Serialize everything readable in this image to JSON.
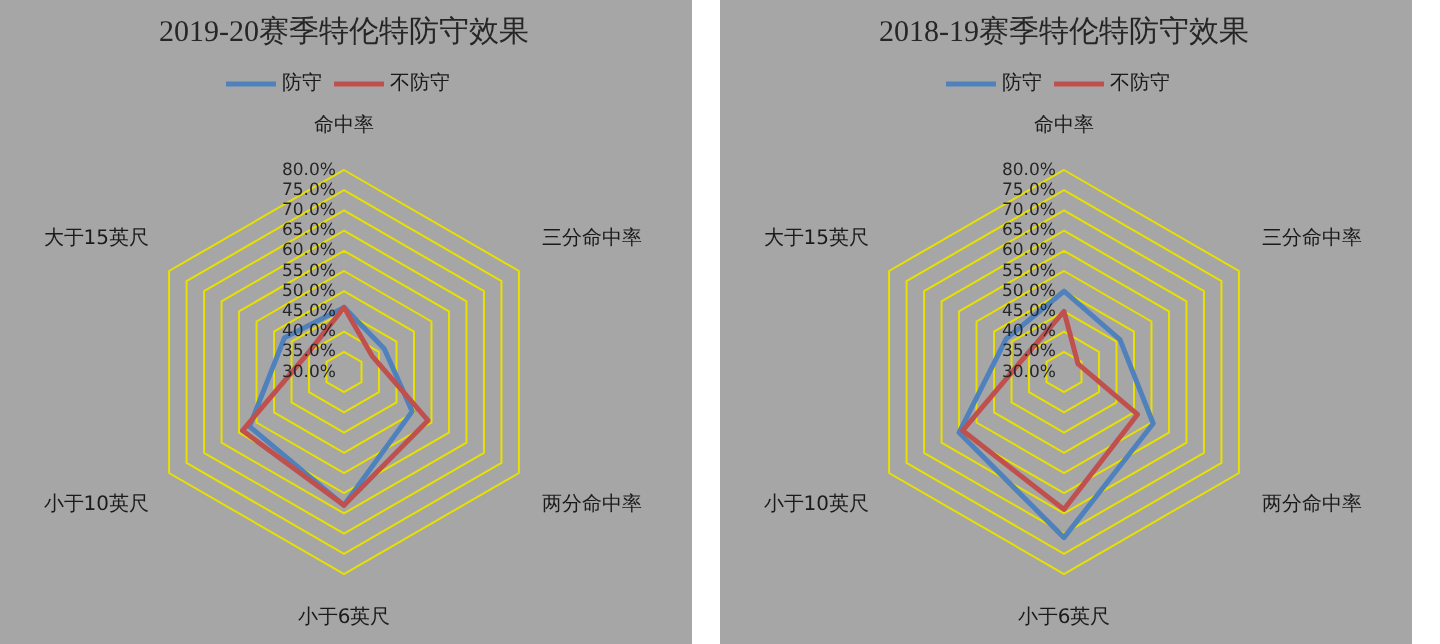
{
  "chart_data": [
    {
      "type": "radar",
      "title": "2019-20赛季特伦特防守效果",
      "categories": [
        "命中率",
        "三分命中率",
        "两分命中率",
        "小于6英尺",
        "小于10英尺",
        "大于15英尺"
      ],
      "series": [
        {
          "name": "防守",
          "color": "#4f81bd",
          "values": [
            46,
            41.5,
            49.5,
            63,
            57,
            47
          ]
        },
        {
          "name": "不防守",
          "color": "#c0504d",
          "values": [
            46,
            38,
            54,
            63,
            59,
            40
          ]
        }
      ],
      "ylim": [
        30,
        80
      ],
      "yticks": [
        {
          "value": 30,
          "label": "30.0%"
        },
        {
          "value": 35,
          "label": "35.0%"
        },
        {
          "value": 40,
          "label": "40.0%"
        },
        {
          "value": 45,
          "label": "45.0%"
        },
        {
          "value": 50,
          "label": "50.0%"
        },
        {
          "value": 55,
          "label": "55.0%"
        },
        {
          "value": 60,
          "label": "60.0%"
        },
        {
          "value": 65,
          "label": "65.0%"
        },
        {
          "value": 70,
          "label": "70.0%"
        },
        {
          "value": 75,
          "label": "75.0%"
        },
        {
          "value": 80,
          "label": "80.0%"
        }
      ],
      "grid": true,
      "legend": "top"
    },
    {
      "type": "radar",
      "title": "2018-19赛季特伦特防守效果",
      "categories": [
        "命中率",
        "三分命中率",
        "两分命中率",
        "小于6英尺",
        "小于10英尺",
        "大于15英尺"
      ],
      "series": [
        {
          "name": "防守",
          "color": "#4f81bd",
          "values": [
            50,
            46,
            55.5,
            71,
            60,
            46.5
          ]
        },
        {
          "name": "不防守",
          "color": "#c0504d",
          "values": [
            45,
            34,
            51,
            64,
            59,
            40
          ]
        }
      ],
      "ylim": [
        30,
        80
      ],
      "yticks": [
        {
          "value": 30,
          "label": "30.0%"
        },
        {
          "value": 35,
          "label": "35.0%"
        },
        {
          "value": 40,
          "label": "40.0%"
        },
        {
          "value": 45,
          "label": "45.0%"
        },
        {
          "value": 50,
          "label": "50.0%"
        },
        {
          "value": 55,
          "label": "55.0%"
        },
        {
          "value": 60,
          "label": "60.0%"
        },
        {
          "value": 65,
          "label": "65.0%"
        },
        {
          "value": 70,
          "label": "70.0%"
        },
        {
          "value": 75,
          "label": "75.0%"
        },
        {
          "value": 80,
          "label": "80.0%"
        }
      ],
      "grid": true,
      "legend": "top"
    }
  ]
}
